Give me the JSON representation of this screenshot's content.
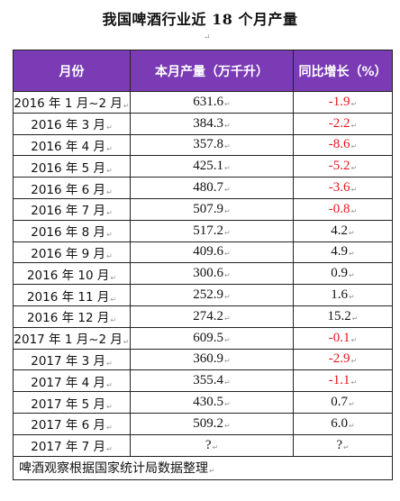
{
  "title": "我国啤酒行业近 18 个月产量",
  "paragraph_mark": "↵",
  "headers": [
    "月份",
    "本月产量（万千升）",
    "同比增长（%）"
  ],
  "rows": [
    {
      "month": "2016 年 1 月~2 月",
      "production": "631.6",
      "growth": "-1.9"
    },
    {
      "month": "2016 年 3 月",
      "production": "384.3",
      "growth": "-2.2"
    },
    {
      "month": "2016 年 4 月",
      "production": "357.8",
      "growth": "-8.6"
    },
    {
      "month": "2016 年 5 月",
      "production": "425.1",
      "growth": "-5.2"
    },
    {
      "month": "2016 年 6 月",
      "production": "480.7",
      "growth": "-3.6"
    },
    {
      "month": "2016 年 7 月",
      "production": "507.9",
      "growth": "-0.8"
    },
    {
      "month": "2016 年 8 月",
      "production": "517.2",
      "growth": "4.2"
    },
    {
      "month": "2016 年 9 月",
      "production": "409.6",
      "growth": "4.9"
    },
    {
      "month": "2016 年 10 月",
      "production": "300.6",
      "growth": "0.9"
    },
    {
      "month": "2016 年 11 月",
      "production": "252.9",
      "growth": "1.6"
    },
    {
      "month": "2016 年 12 月",
      "production": "274.2",
      "growth": "15.2"
    },
    {
      "month": "2017 年 1 月~2 月",
      "production": "609.5",
      "growth": "-0.1"
    },
    {
      "month": "2017 年 3 月",
      "production": "360.9",
      "growth": "-2.9"
    },
    {
      "month": "2017 年 4 月",
      "production": "355.4",
      "growth": "-1.1"
    },
    {
      "month": "2017 年 5 月",
      "production": "430.5",
      "growth": "0.7"
    },
    {
      "month": "2017 年 6 月",
      "production": "509.2",
      "growth": "6.0"
    },
    {
      "month": "2017 年 7 月",
      "production": "?",
      "growth": "?"
    }
  ],
  "note": "啤酒观察根据国家统计局数据整理",
  "colors": {
    "header_bg": "#7a3bb5",
    "negative": "#e8141b",
    "positive": "#111111"
  }
}
